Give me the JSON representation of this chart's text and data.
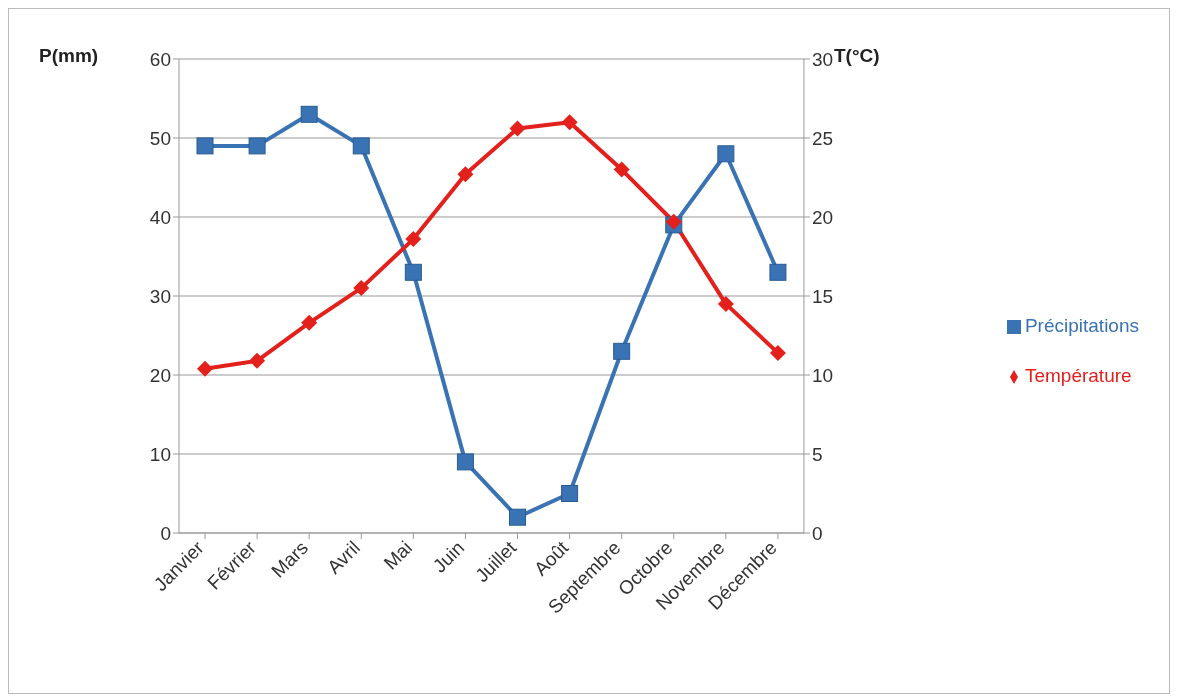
{
  "chart_data": {
    "type": "line",
    "ylabel": "P(mm)",
    "y2label": "T(°C)",
    "categories": [
      "Janvier",
      "Février",
      "Mars",
      "Avril",
      "Mai",
      "Juin",
      "Juillet",
      "Août",
      "Septembre",
      "Octobre",
      "Novembre",
      "Décembre"
    ],
    "series": [
      {
        "name": "Précipitations",
        "color": "#3a73b3",
        "marker": "square",
        "values": [
          49,
          49,
          53,
          49,
          33,
          9,
          2,
          5,
          23,
          39,
          48,
          33
        ]
      },
      {
        "name": "Température",
        "color": "#e3201b",
        "marker": "diamond",
        "axis": "y2",
        "values": [
          10.4,
          10.9,
          13.3,
          15.5,
          18.6,
          22.7,
          25.6,
          26,
          23,
          19.7,
          14.5,
          11.4
        ]
      }
    ],
    "ylim": [
      0,
      60
    ],
    "yticks": [
      0,
      10,
      20,
      30,
      40,
      50,
      60
    ],
    "y2lim": [
      0,
      30
    ],
    "y2ticks": [
      0,
      5,
      10,
      15,
      20,
      25,
      30
    ],
    "grid": "y",
    "legend": "right",
    "line_style": "solid"
  }
}
